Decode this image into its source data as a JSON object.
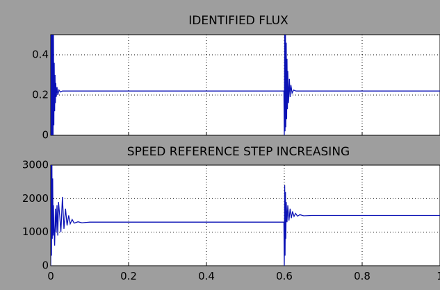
{
  "window": {
    "background": "#9e9e9e",
    "plot_background": "#ffffff",
    "grid_color": "#000000",
    "trace_color": "#0b12b5",
    "text_color": "#000000"
  },
  "chart_data": [
    {
      "type": "line",
      "title": "IDENTIFIED FLUX",
      "xlabel": "",
      "ylabel": "",
      "xlim": [
        0,
        1
      ],
      "ylim": [
        0,
        0.5
      ],
      "grid": true,
      "x_ticks": [
        "0",
        "0.2",
        "0.4",
        "0.6",
        "0.8",
        "1"
      ],
      "y_ticks": [
        {
          "value": 0,
          "label": "0"
        },
        {
          "value": 0.2,
          "label": "0.2"
        },
        {
          "value": 0.4,
          "label": "0.4"
        }
      ],
      "show_x_tick_labels": false,
      "series": [
        {
          "color": "#0b12b5",
          "points": [
            [
              0.0,
              0.0
            ],
            [
              0.001,
              0.5
            ],
            [
              0.002,
              0.0
            ],
            [
              0.003,
              0.5
            ],
            [
              0.004,
              0.0
            ],
            [
              0.005,
              0.5
            ],
            [
              0.006,
              0.0
            ],
            [
              0.007,
              0.5
            ],
            [
              0.008,
              0.05
            ],
            [
              0.009,
              0.36
            ],
            [
              0.01,
              0.12
            ],
            [
              0.011,
              0.3
            ],
            [
              0.012,
              0.16
            ],
            [
              0.013,
              0.26
            ],
            [
              0.014,
              0.19
            ],
            [
              0.016,
              0.24
            ],
            [
              0.018,
              0.2
            ],
            [
              0.021,
              0.225
            ],
            [
              0.025,
              0.215
            ],
            [
              0.03,
              0.22
            ],
            [
              0.599,
              0.22
            ],
            [
              0.6,
              0.0
            ],
            [
              0.601,
              0.5
            ],
            [
              0.602,
              0.02
            ],
            [
              0.603,
              0.5
            ],
            [
              0.604,
              0.04
            ],
            [
              0.605,
              0.46
            ],
            [
              0.606,
              0.08
            ],
            [
              0.607,
              0.38
            ],
            [
              0.608,
              0.13
            ],
            [
              0.609,
              0.32
            ],
            [
              0.611,
              0.16
            ],
            [
              0.613,
              0.28
            ],
            [
              0.615,
              0.19
            ],
            [
              0.617,
              0.25
            ],
            [
              0.62,
              0.21
            ],
            [
              0.624,
              0.225
            ],
            [
              0.63,
              0.22
            ],
            [
              1.0,
              0.22
            ]
          ]
        }
      ]
    },
    {
      "type": "line",
      "title": "SPEED REFERENCE STEP INCREASING",
      "xlabel": "",
      "ylabel": "",
      "xlim": [
        0,
        1
      ],
      "ylim": [
        0,
        3000
      ],
      "grid": true,
      "x_ticks": [
        "0",
        "0.2",
        "0.4",
        "0.6",
        "0.8",
        "1"
      ],
      "y_ticks": [
        {
          "value": 0,
          "label": "0"
        },
        {
          "value": 1000,
          "label": "1000"
        },
        {
          "value": 2000,
          "label": "2000"
        },
        {
          "value": 3000,
          "label": "3000"
        }
      ],
      "show_x_tick_labels": true,
      "series": [
        {
          "color": "#0b12b5",
          "points": [
            [
              0.0,
              0
            ],
            [
              0.001,
              3000
            ],
            [
              0.002,
              300
            ],
            [
              0.003,
              3000
            ],
            [
              0.004,
              800
            ],
            [
              0.005,
              2600
            ],
            [
              0.006,
              900
            ],
            [
              0.007,
              1800
            ],
            [
              0.008,
              1200
            ],
            [
              0.01,
              600
            ],
            [
              0.012,
              1700
            ],
            [
              0.014,
              1000
            ],
            [
              0.016,
              1800
            ],
            [
              0.018,
              900
            ],
            [
              0.02,
              1900
            ],
            [
              0.023,
              1500
            ],
            [
              0.026,
              1000
            ],
            [
              0.03,
              2050
            ],
            [
              0.034,
              1100
            ],
            [
              0.038,
              1700
            ],
            [
              0.042,
              1200
            ],
            [
              0.046,
              1500
            ],
            [
              0.05,
              1250
            ],
            [
              0.055,
              1380
            ],
            [
              0.06,
              1270
            ],
            [
              0.07,
              1310
            ],
            [
              0.08,
              1280
            ],
            [
              0.1,
              1300
            ],
            [
              0.599,
              1300
            ],
            [
              0.6,
              0
            ],
            [
              0.601,
              2400
            ],
            [
              0.602,
              300
            ],
            [
              0.603,
              2200
            ],
            [
              0.604,
              800
            ],
            [
              0.605,
              1900
            ],
            [
              0.607,
              1300
            ],
            [
              0.609,
              1800
            ],
            [
              0.612,
              1350
            ],
            [
              0.615,
              1700
            ],
            [
              0.618,
              1420
            ],
            [
              0.621,
              1620
            ],
            [
              0.625,
              1470
            ],
            [
              0.629,
              1560
            ],
            [
              0.634,
              1480
            ],
            [
              0.64,
              1520
            ],
            [
              0.65,
              1490
            ],
            [
              0.67,
              1500
            ],
            [
              1.0,
              1500
            ]
          ]
        }
      ]
    }
  ]
}
